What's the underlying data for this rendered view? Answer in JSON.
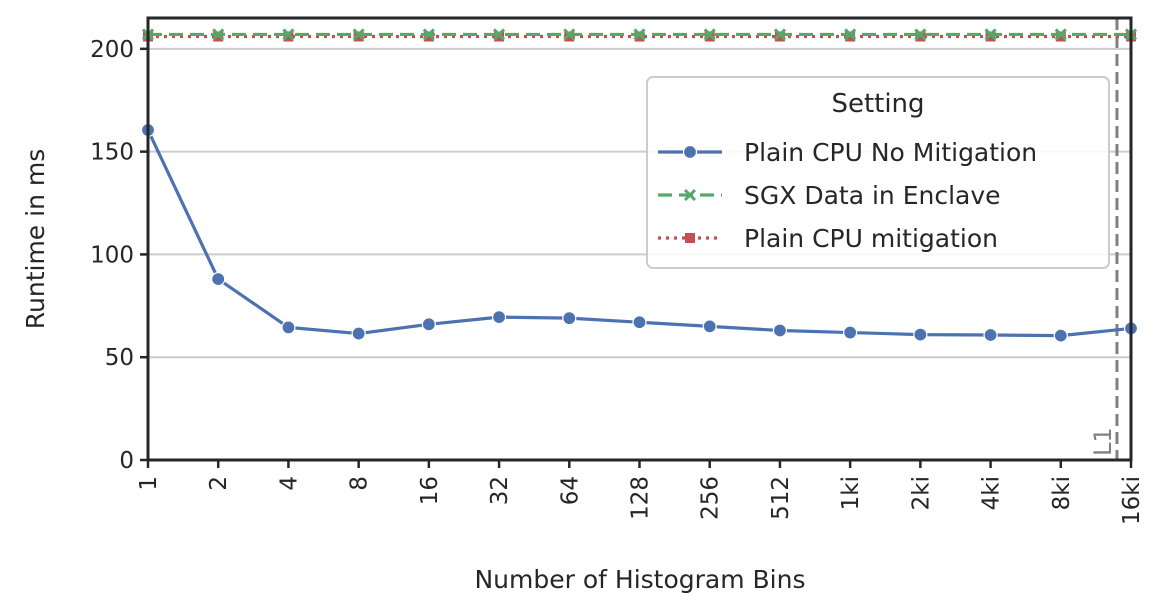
{
  "chart_data": {
    "type": "line",
    "title": "",
    "xlabel": "Number of Histogram Bins",
    "ylabel": "Runtime in ms",
    "categories": [
      "1",
      "2",
      "4",
      "8",
      "16",
      "32",
      "64",
      "128",
      "256",
      "512",
      "1ki",
      "2ki",
      "4ki",
      "8ki",
      "16ki"
    ],
    "ylim": [
      0,
      215
    ],
    "yticks": [
      0,
      50,
      100,
      150,
      200
    ],
    "grid": "horizontal",
    "legend": {
      "title": "Setting",
      "placement": "upper-right"
    },
    "series": [
      {
        "name": "Plain CPU No Mitigation",
        "color": "#4c72b0",
        "marker": "circle",
        "dash": "solid",
        "values": [
          160.5,
          88,
          64.5,
          61.5,
          66,
          69.5,
          69,
          67,
          65,
          63,
          62,
          61,
          60.8,
          60.5,
          64
        ]
      },
      {
        "name": "SGX Data in Enclave",
        "color": "#55a868",
        "marker": "x",
        "dash": "dashed",
        "values": [
          207,
          207,
          207,
          207,
          207,
          207,
          207,
          207,
          207,
          207,
          207,
          207,
          207,
          207,
          207
        ]
      },
      {
        "name": "Plain CPU mitigation",
        "color": "#c44e52",
        "marker": "square",
        "dash": "dotted",
        "values": [
          206,
          206,
          206,
          206,
          206,
          206,
          206,
          206,
          206,
          206,
          206,
          206,
          206,
          206,
          206
        ]
      }
    ],
    "annotations": [
      {
        "text": "L1",
        "x_position": 13.8,
        "color": "#808080",
        "line": "dashed-vertical"
      }
    ]
  }
}
